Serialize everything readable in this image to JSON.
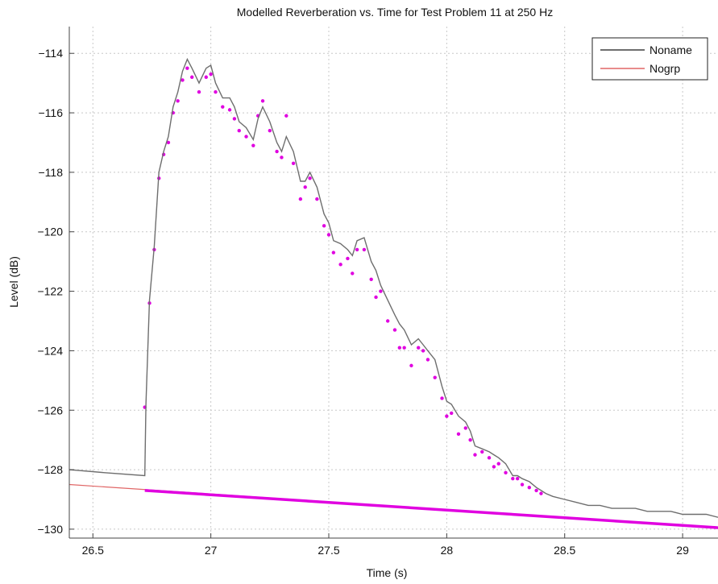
{
  "chart_data": {
    "type": "line",
    "title": "Modelled Reverberation vs. Time for Test Problem 11 at 250 Hz",
    "xlabel": "Time (s)",
    "ylabel": "Level (dB)",
    "xlim": [
      26.4,
      29.15
    ],
    "ylim": [
      -130.3,
      -113.1
    ],
    "xticks": [
      26.5,
      27,
      27.5,
      28,
      28.5,
      29
    ],
    "xtick_labels": [
      "26.5",
      "27",
      "27.5",
      "28",
      "28.5",
      "29"
    ],
    "yticks": [
      -130,
      -128,
      -126,
      -124,
      -122,
      -120,
      -118,
      -116,
      -114
    ],
    "ytick_labels": [
      "−130",
      "−128",
      "−126",
      "−124",
      "−122",
      "−120",
      "−118",
      "−116",
      "−114"
    ],
    "grid": true,
    "legend_position": "top-right",
    "colors": {
      "noname": "#6e6e6e",
      "nogrp": "#e06666",
      "markers": "#e000e0"
    },
    "series": [
      {
        "name": "Noname",
        "style": "line",
        "x": [
          26.4,
          26.55,
          26.72,
          26.725,
          26.74,
          26.76,
          26.78,
          26.8,
          26.82,
          26.84,
          26.86,
          26.88,
          26.9,
          26.92,
          26.95,
          26.98,
          27.0,
          27.02,
          27.05,
          27.08,
          27.1,
          27.12,
          27.15,
          27.18,
          27.2,
          27.22,
          27.25,
          27.28,
          27.3,
          27.32,
          27.35,
          27.38,
          27.4,
          27.42,
          27.45,
          27.48,
          27.5,
          27.52,
          27.55,
          27.58,
          27.6,
          27.62,
          27.65,
          27.68,
          27.7,
          27.72,
          27.75,
          27.78,
          27.8,
          27.82,
          27.85,
          27.88,
          27.9,
          27.92,
          27.95,
          27.98,
          28.0,
          28.02,
          28.05,
          28.08,
          28.1,
          28.12,
          28.15,
          28.18,
          28.2,
          28.22,
          28.25,
          28.28,
          28.3,
          28.32,
          28.35,
          28.38,
          28.4,
          28.42,
          28.45,
          28.5,
          28.55,
          28.6,
          28.65,
          28.7,
          28.75,
          28.8,
          28.85,
          28.9,
          28.95,
          29.0,
          29.05,
          29.1,
          29.15
        ],
        "y": [
          -128.0,
          -128.1,
          -128.2,
          -125.8,
          -122.3,
          -120.5,
          -118.0,
          -117.3,
          -116.8,
          -115.8,
          -115.3,
          -114.6,
          -114.2,
          -114.5,
          -115.0,
          -114.5,
          -114.4,
          -115.0,
          -115.5,
          -115.5,
          -115.8,
          -116.3,
          -116.5,
          -116.9,
          -116.2,
          -115.8,
          -116.3,
          -117.0,
          -117.3,
          -116.8,
          -117.3,
          -118.3,
          -118.3,
          -118.0,
          -118.5,
          -119.4,
          -119.7,
          -120.3,
          -120.4,
          -120.6,
          -120.8,
          -120.3,
          -120.2,
          -121.0,
          -121.3,
          -121.8,
          -122.3,
          -122.8,
          -123.1,
          -123.3,
          -123.8,
          -123.6,
          -123.8,
          -124.0,
          -124.3,
          -125.2,
          -125.7,
          -125.8,
          -126.2,
          -126.4,
          -126.7,
          -127.2,
          -127.3,
          -127.4,
          -127.5,
          -127.6,
          -127.8,
          -128.2,
          -128.2,
          -128.3,
          -128.4,
          -128.6,
          -128.7,
          -128.8,
          -128.9,
          -129.0,
          -129.1,
          -129.2,
          -129.2,
          -129.3,
          -129.3,
          -129.3,
          -129.4,
          -129.4,
          -129.4,
          -129.5,
          -129.5,
          -129.5,
          -129.6
        ]
      },
      {
        "name": "Nogrp",
        "style": "line",
        "x": [
          26.4,
          29.15
        ],
        "y": [
          -128.5,
          -129.95
        ]
      },
      {
        "name": "",
        "style": "markers",
        "x": [
          26.72,
          26.74,
          26.76,
          26.78,
          26.8,
          26.82,
          26.84,
          26.86,
          26.88,
          26.9,
          26.92,
          26.95,
          26.98,
          27.0,
          27.02,
          27.05,
          27.08,
          27.1,
          27.12,
          27.15,
          27.18,
          27.2,
          27.22,
          27.25,
          27.28,
          27.3,
          27.32,
          27.35,
          27.38,
          27.4,
          27.42,
          27.45,
          27.48,
          27.5,
          27.52,
          27.55,
          27.58,
          27.6,
          27.62,
          27.65,
          27.68,
          27.7,
          27.72,
          27.75,
          27.78,
          27.8,
          27.82,
          27.85,
          27.88,
          27.9,
          27.92,
          27.95,
          27.98,
          28.0,
          28.02,
          28.05,
          28.08,
          28.1,
          28.12,
          28.15,
          28.18,
          28.2,
          28.22,
          28.25,
          28.28,
          28.3,
          28.32,
          28.35,
          28.38,
          28.4
        ],
        "y": [
          -125.9,
          -122.4,
          -120.6,
          -118.2,
          -117.4,
          -117.0,
          -116.0,
          -115.6,
          -114.9,
          -114.5,
          -114.8,
          -115.3,
          -114.8,
          -114.7,
          -115.3,
          -115.8,
          -115.9,
          -116.2,
          -116.6,
          -116.8,
          -117.1,
          -116.1,
          -115.6,
          -116.6,
          -117.3,
          -117.5,
          -116.1,
          -117.7,
          -118.9,
          -118.5,
          -118.2,
          -118.9,
          -119.8,
          -120.1,
          -120.7,
          -121.1,
          -120.9,
          -121.4,
          -120.6,
          -120.6,
          -121.6,
          -122.2,
          -122.0,
          -123.0,
          -123.3,
          -123.9,
          -123.9,
          -124.5,
          -123.9,
          -124.0,
          -124.3,
          -124.9,
          -125.6,
          -126.2,
          -126.1,
          -126.8,
          -126.6,
          -127.0,
          -127.5,
          -127.4,
          -127.6,
          -127.9,
          -127.8,
          -128.1,
          -128.3,
          -128.3,
          -128.5,
          -128.6,
          -128.7,
          -128.8
        ]
      },
      {
        "name": "",
        "style": "markers-line",
        "x": [
          26.72,
          29.15
        ],
        "y": [
          -128.7,
          -129.95
        ]
      }
    ]
  }
}
